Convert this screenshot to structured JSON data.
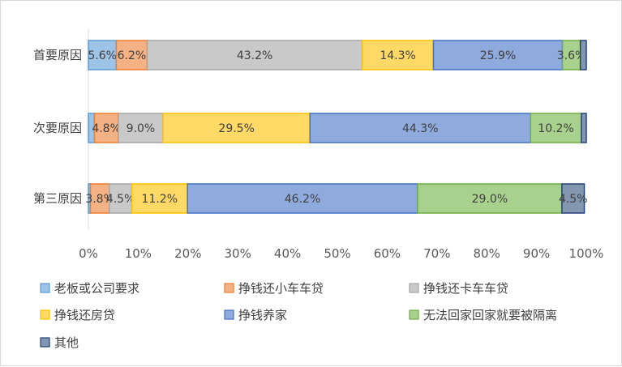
{
  "chart_data": {
    "type": "bar",
    "orientation": "horizontal",
    "stacked": "percent",
    "categories": [
      "首要原因",
      "次要原因",
      "第三原因"
    ],
    "series": [
      {
        "name": "老板或公司要求",
        "color": "#9dc3e6",
        "edge": "#5b9bd5",
        "values": [
          5.6,
          1.2,
          0.4
        ],
        "labels": [
          "5.6%",
          "",
          ""
        ]
      },
      {
        "name": "挣钱还小车车贷",
        "color": "#f4b183",
        "edge": "#ed7d31",
        "values": [
          6.2,
          4.8,
          3.8
        ],
        "labels": [
          "6.2%",
          "4.8%",
          "3.8%"
        ]
      },
      {
        "name": "挣钱还卡车车贷",
        "color": "#c9c9c9",
        "edge": "#a5a5a5",
        "values": [
          43.2,
          9.0,
          4.5
        ],
        "labels": [
          "43.2%",
          "9.0%",
          "4.5%"
        ]
      },
      {
        "name": "挣钱还房贷",
        "color": "#ffd966",
        "edge": "#ffc000",
        "values": [
          14.3,
          29.5,
          11.2
        ],
        "labels": [
          "14.3%",
          "29.5%",
          "11.2%"
        ]
      },
      {
        "name": "挣钱养家",
        "color": "#8faadc",
        "edge": "#4472c4",
        "values": [
          25.9,
          44.3,
          46.2
        ],
        "labels": [
          "25.9%",
          "44.3%",
          "46.2%"
        ]
      },
      {
        "name": "无法回家回家就要被隔离",
        "color": "#a9d18e",
        "edge": "#70ad47",
        "values": [
          3.6,
          10.2,
          29.0
        ],
        "labels": [
          "3.6%",
          "10.2%",
          "29.0%"
        ]
      },
      {
        "name": "其他",
        "color": "#8497b0",
        "edge": "#264478",
        "values": [
          1.2,
          1.0,
          4.5
        ],
        "labels": [
          "",
          "",
          "4.5%"
        ]
      }
    ],
    "x_ticks": [
      "0%",
      "10%",
      "20%",
      "30%",
      "40%",
      "50%",
      "60%",
      "70%",
      "80%",
      "90%",
      "100%"
    ],
    "xlim": [
      0,
      100
    ],
    "grid": false,
    "legend_position": "bottom"
  }
}
